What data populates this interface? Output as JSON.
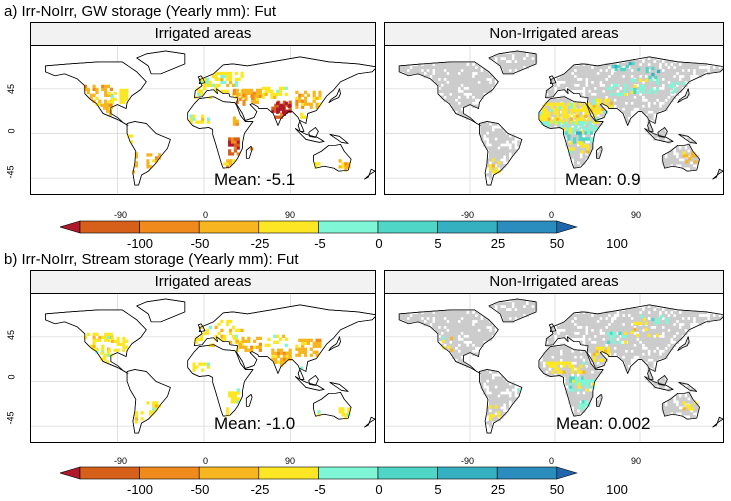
{
  "sections": [
    {
      "title": "a) Irr-NoIrr, GW storage (Yearly mm): Fut",
      "panels": [
        {
          "strip": "Irrigated areas",
          "mean": "Mean: -5.1"
        },
        {
          "strip": "Non-Irrigated areas",
          "mean": "Mean: 0.9"
        }
      ]
    },
    {
      "title": "b) Irr-NoIrr, Stream storage (Yearly mm): Fut",
      "panels": [
        {
          "strip": "Irrigated areas",
          "mean": "Mean: -1.0"
        },
        {
          "strip": "Non-Irrigated areas",
          "mean": "Mean: 0.002"
        }
      ]
    }
  ],
  "axes": {
    "x_ticks": [
      "-90",
      "0",
      "90"
    ],
    "y_ticks": [
      "45",
      "0",
      "-45"
    ]
  },
  "colorbar": {
    "breaks": [
      "-100",
      "-50",
      "-25",
      "-5",
      "0",
      "5",
      "25",
      "50",
      "100"
    ],
    "colors": [
      "#b2182b",
      "#d6601a",
      "#f08a1c",
      "#f7b520",
      "#fde725",
      "#7ff7d6",
      "#4fd6c6",
      "#35b0c0",
      "#2b8cbe",
      "#2166ac"
    ]
  },
  "map_colors": {
    "land": "#ffffff",
    "coast": "#000000",
    "non_irrigated_gray": "#cccccc",
    "grid": "#d9d9d9"
  }
}
